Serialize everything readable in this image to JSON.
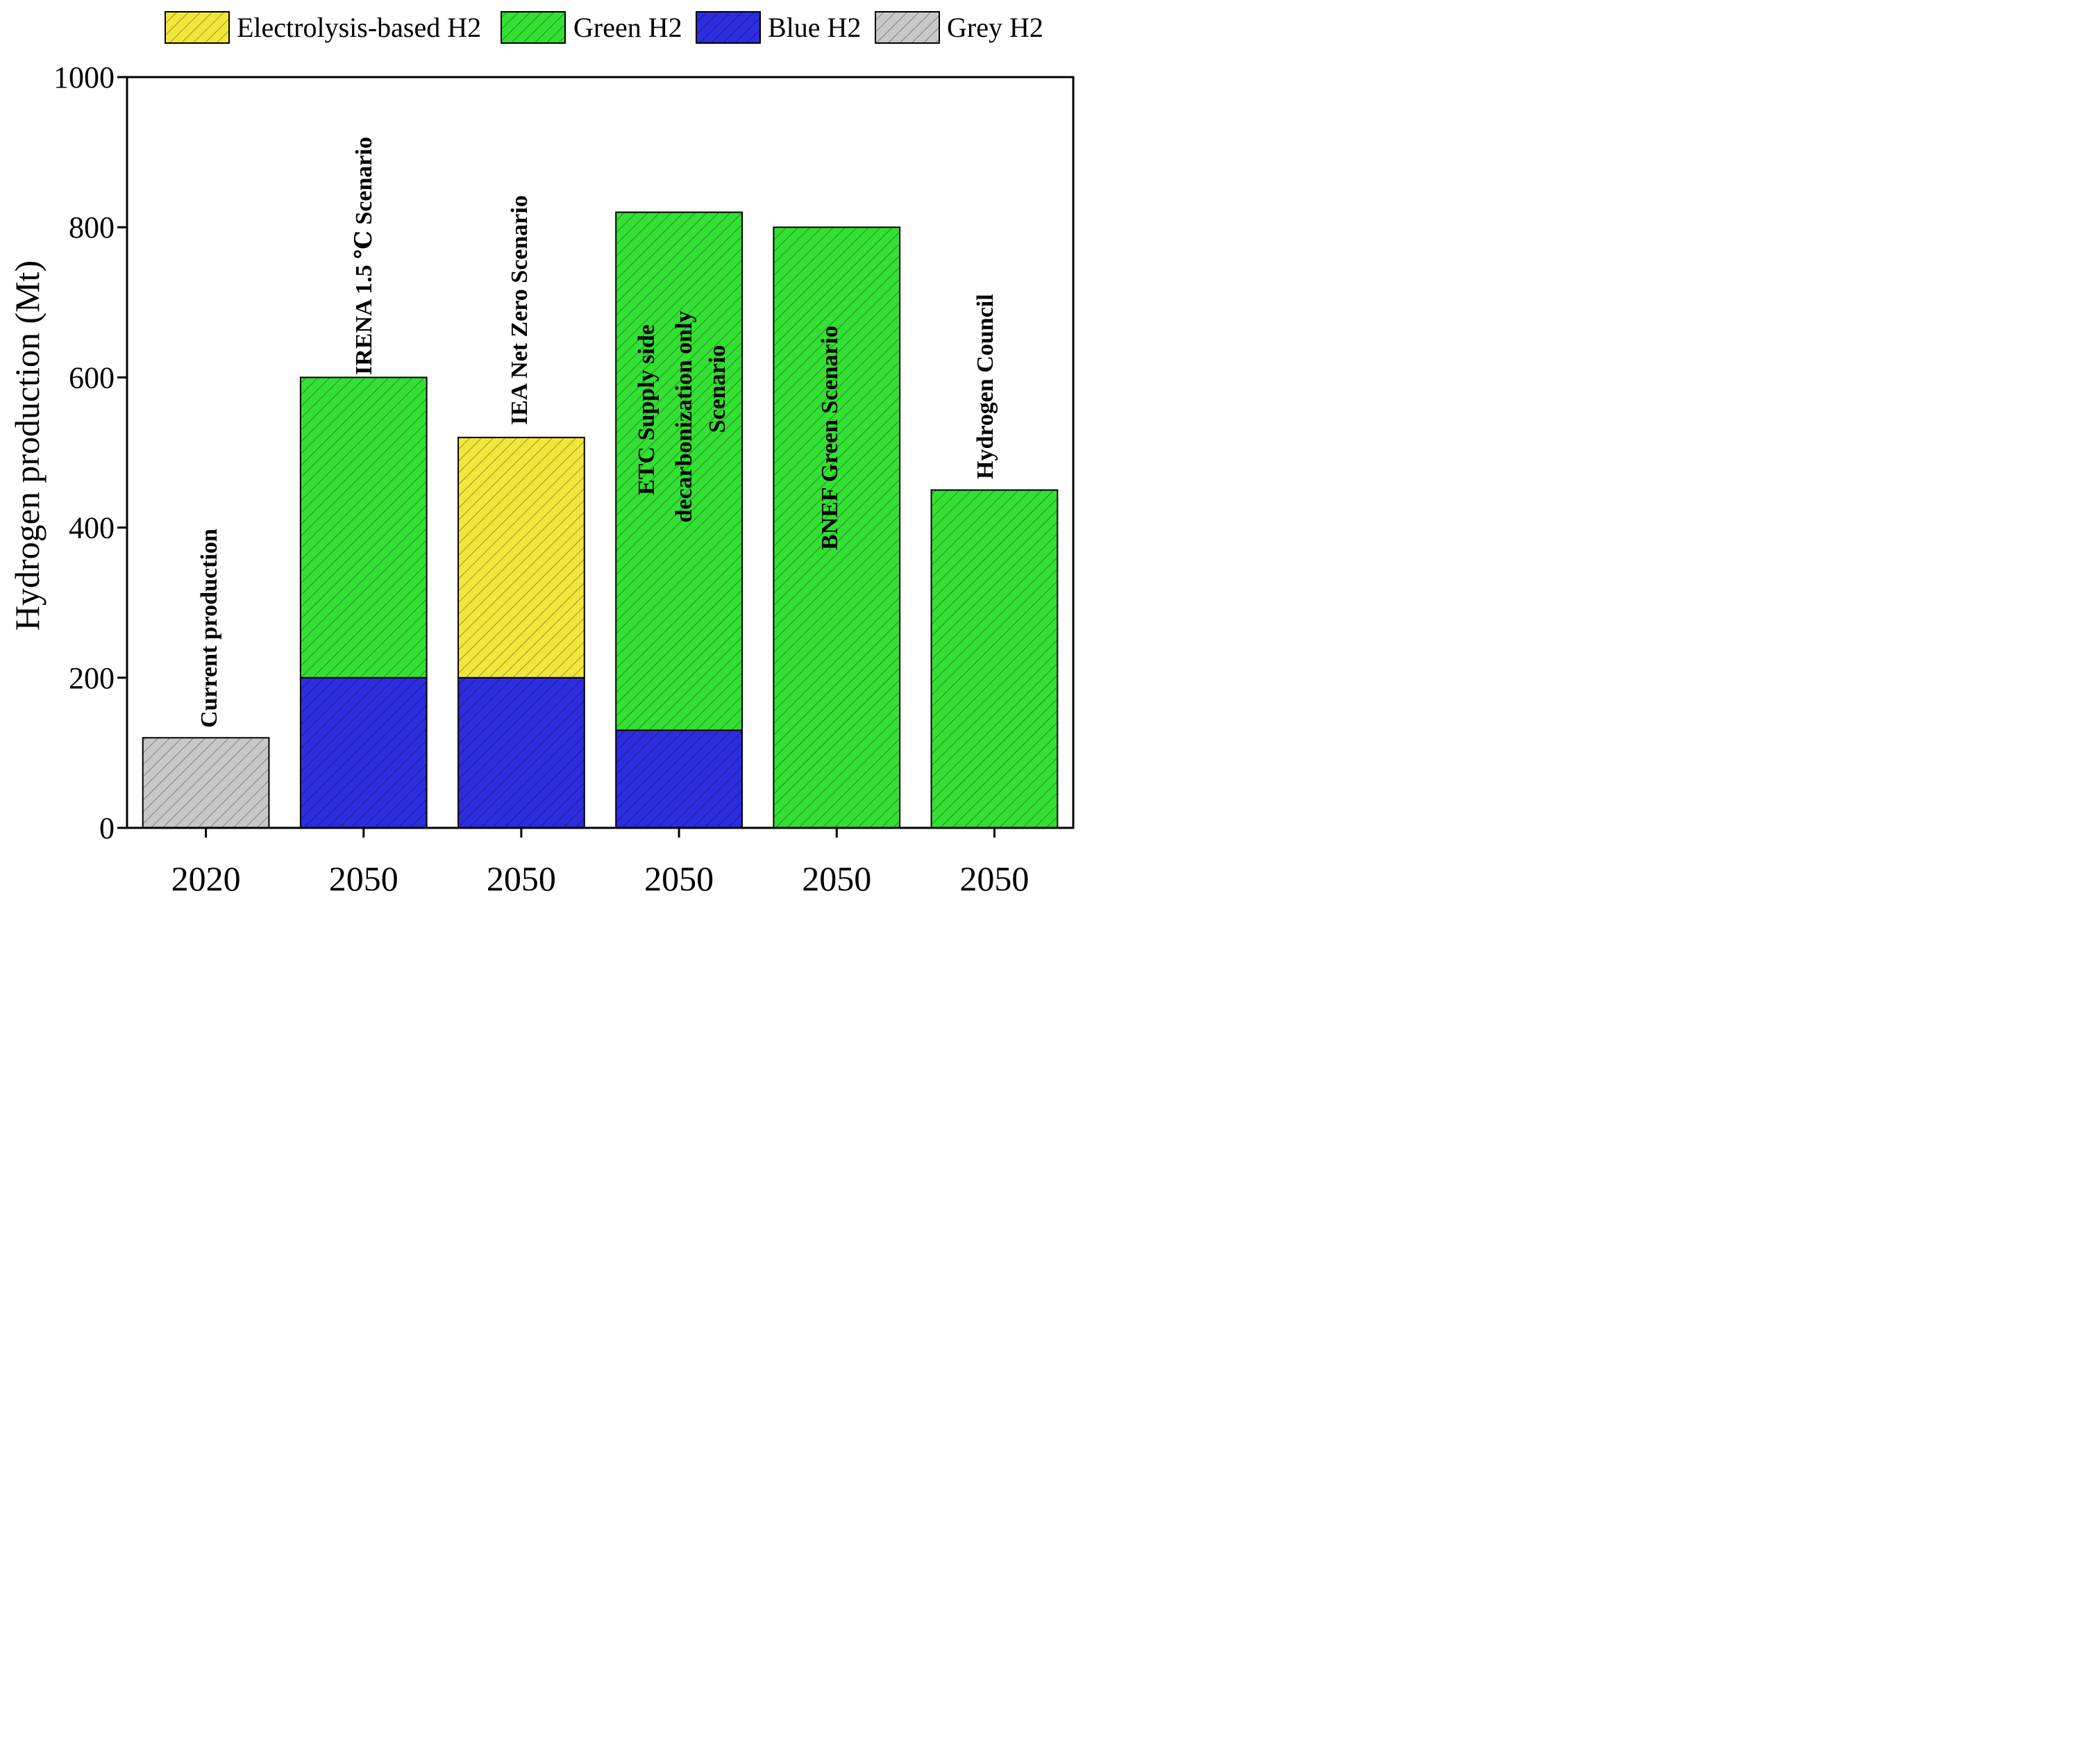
{
  "chart_data": {
    "type": "bar",
    "stacked": true,
    "title": "",
    "xlabel": "",
    "ylabel": "Hydrogen production (Mt)",
    "ylim": [
      0,
      1000
    ],
    "yticks": [
      0,
      200,
      400,
      600,
      800,
      1000
    ],
    "grid": false,
    "legend_position": "top",
    "categories": [
      "2020",
      "2050",
      "2050",
      "2050",
      "2050",
      "2050"
    ],
    "bar_annotations": [
      [
        "Current production"
      ],
      [
        "IRENA 1.5 ℃ Scenario"
      ],
      [
        "IEA Net Zero Scenario"
      ],
      [
        "ETC Supply side",
        "decarbonization only",
        "Scenario"
      ],
      [
        "BNEF Green Scenario"
      ],
      [
        "Hydrogen Council"
      ]
    ],
    "series": [
      {
        "name": "Electrolysis-based H2",
        "color": "#f2e63a",
        "values": [
          0,
          0,
          320,
          0,
          0,
          0
        ]
      },
      {
        "name": "Green H2",
        "color": "#33e033",
        "values": [
          0,
          400,
          0,
          690,
          800,
          450
        ]
      },
      {
        "name": "Blue H2",
        "color": "#2d2de0",
        "values": [
          0,
          200,
          200,
          130,
          0,
          0
        ]
      },
      {
        "name": "Grey H2",
        "color": "#c8c8c8",
        "values": [
          120,
          0,
          0,
          0,
          0,
          0
        ]
      }
    ],
    "stack_order": [
      "Grey H2",
      "Blue H2",
      "Green H2",
      "Electrolysis-based H2"
    ]
  }
}
